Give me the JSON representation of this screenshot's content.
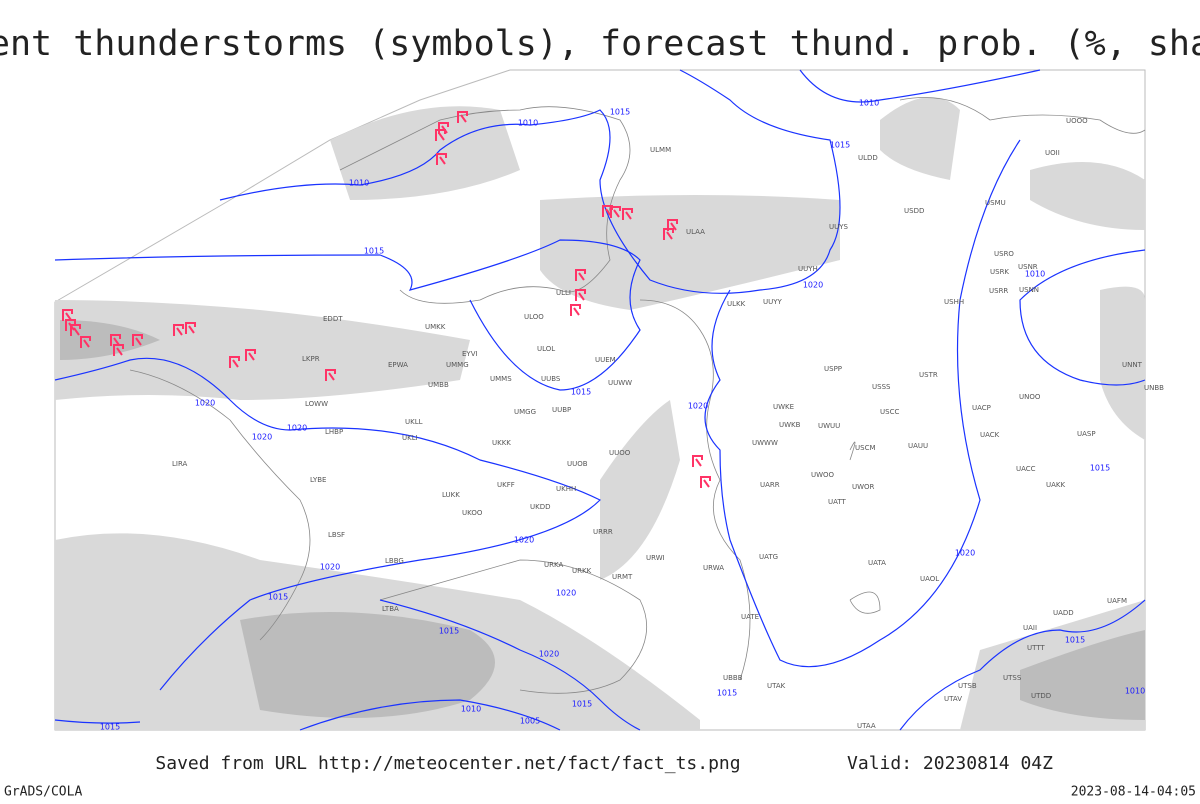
{
  "title": "Current thunderstorms (symbols), forecast thund. prob. (%, shaded)",
  "footer": {
    "source": "Saved from URL http://meteocenter.net/fact/fact_ts.png",
    "valid": "Valid: 20230814 04Z"
  },
  "credits": {
    "software": "GrADS/COLA",
    "timestamp": "2023-08-14-04:05"
  },
  "isobar_labels": [
    "1015",
    "1010",
    "1010",
    "1015",
    "1010",
    "1015",
    "1020",
    "1015",
    "1020",
    "1020",
    "1020",
    "1020",
    "1020",
    "1020",
    "1015",
    "1015",
    "1020",
    "1020",
    "1015",
    "1010",
    "1005",
    "1015",
    "1015",
    "1020",
    "1010",
    "1015",
    "1015",
    "1010"
  ],
  "stations": [
    "ULLI",
    "ULOO",
    "ULOL",
    "UUEM",
    "UUWW",
    "UUBS",
    "UMMS",
    "UMGG",
    "UUBP",
    "UMKK",
    "UMMG",
    "UMBB",
    "EPWA",
    "EYVI",
    "EDDT",
    "LKPR",
    "LOWW",
    "LHBP",
    "LIRA",
    "LYBE",
    "LBSF",
    "LBBG",
    "LTBA",
    "UKLL",
    "UKLI",
    "UKKK",
    "UKHH",
    "UKDD",
    "UKOO",
    "LUKK",
    "UKFF",
    "UUOO",
    "UUOB",
    "URRR",
    "URKA",
    "URKK",
    "URMT",
    "URWI",
    "URWA",
    "ULMM",
    "UUYY",
    "UUYH",
    "UUYS",
    "ULAA",
    "ULKK",
    "USSS",
    "USCC",
    "USCM",
    "UAUU",
    "USTR",
    "USPP",
    "UWKE",
    "UWKB",
    "UWUU",
    "UWWW",
    "UWOO",
    "UWOR",
    "UATT",
    "UARR",
    "UATG",
    "UATA",
    "UAOL",
    "UACC",
    "UAKK",
    "UACK",
    "UACP",
    "UNOO",
    "UASP",
    "UNNT",
    "UNBB",
    "USHH",
    "USRR",
    "USRK",
    "USNR",
    "USNN",
    "USRO",
    "UOOO",
    "UOII",
    "USDD",
    "USMU",
    "ULDD",
    "UADD",
    "UAII",
    "UAFM",
    "UTTT",
    "UTSS",
    "UTDD",
    "UTAK",
    "UTAA",
    "UTAV",
    "UTSB",
    "UBBB",
    "UATE"
  ]
}
